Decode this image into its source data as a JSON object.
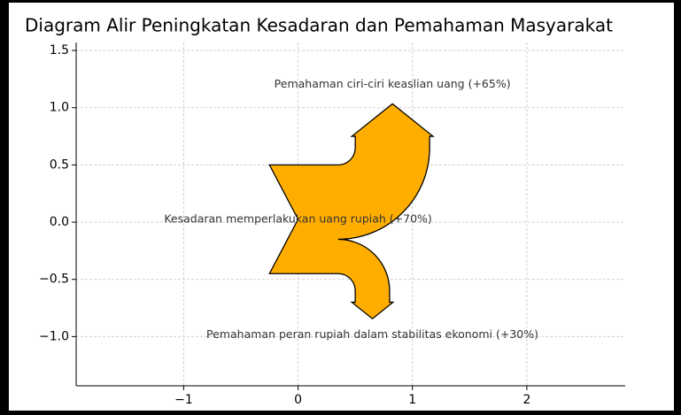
{
  "chart_data": {
    "type": "sankey",
    "title": "Diagram Alir Peningkatan Kesadaran dan Pemahaman Masyarakat",
    "flows": [
      {
        "label": "Kesadaran memperlakukan uang rupiah (+70%)",
        "value": 70
      },
      {
        "label": "Pemahaman ciri-ciri keaslian uang (+65%)",
        "value": 65
      },
      {
        "label": "Pemahaman peran rupiah dalam stabilitas ekonomi (+30%)",
        "value": 30
      }
    ],
    "color": "#ffae00",
    "xlim": [
      -1.94,
      2.86
    ],
    "ylim": [
      -1.43,
      1.57
    ],
    "xticks": [
      {
        "value": -1,
        "label": "−1"
      },
      0,
      1,
      2
    ],
    "yticks": [
      {
        "value": -1.0,
        "label": "−1.0"
      },
      {
        "value": -0.5,
        "label": "−0.5"
      },
      {
        "value": 0.0,
        "label": "0.0"
      },
      0.5,
      {
        "value": 1.0,
        "label": "1.0"
      },
      1.5
    ],
    "grid": true
  }
}
